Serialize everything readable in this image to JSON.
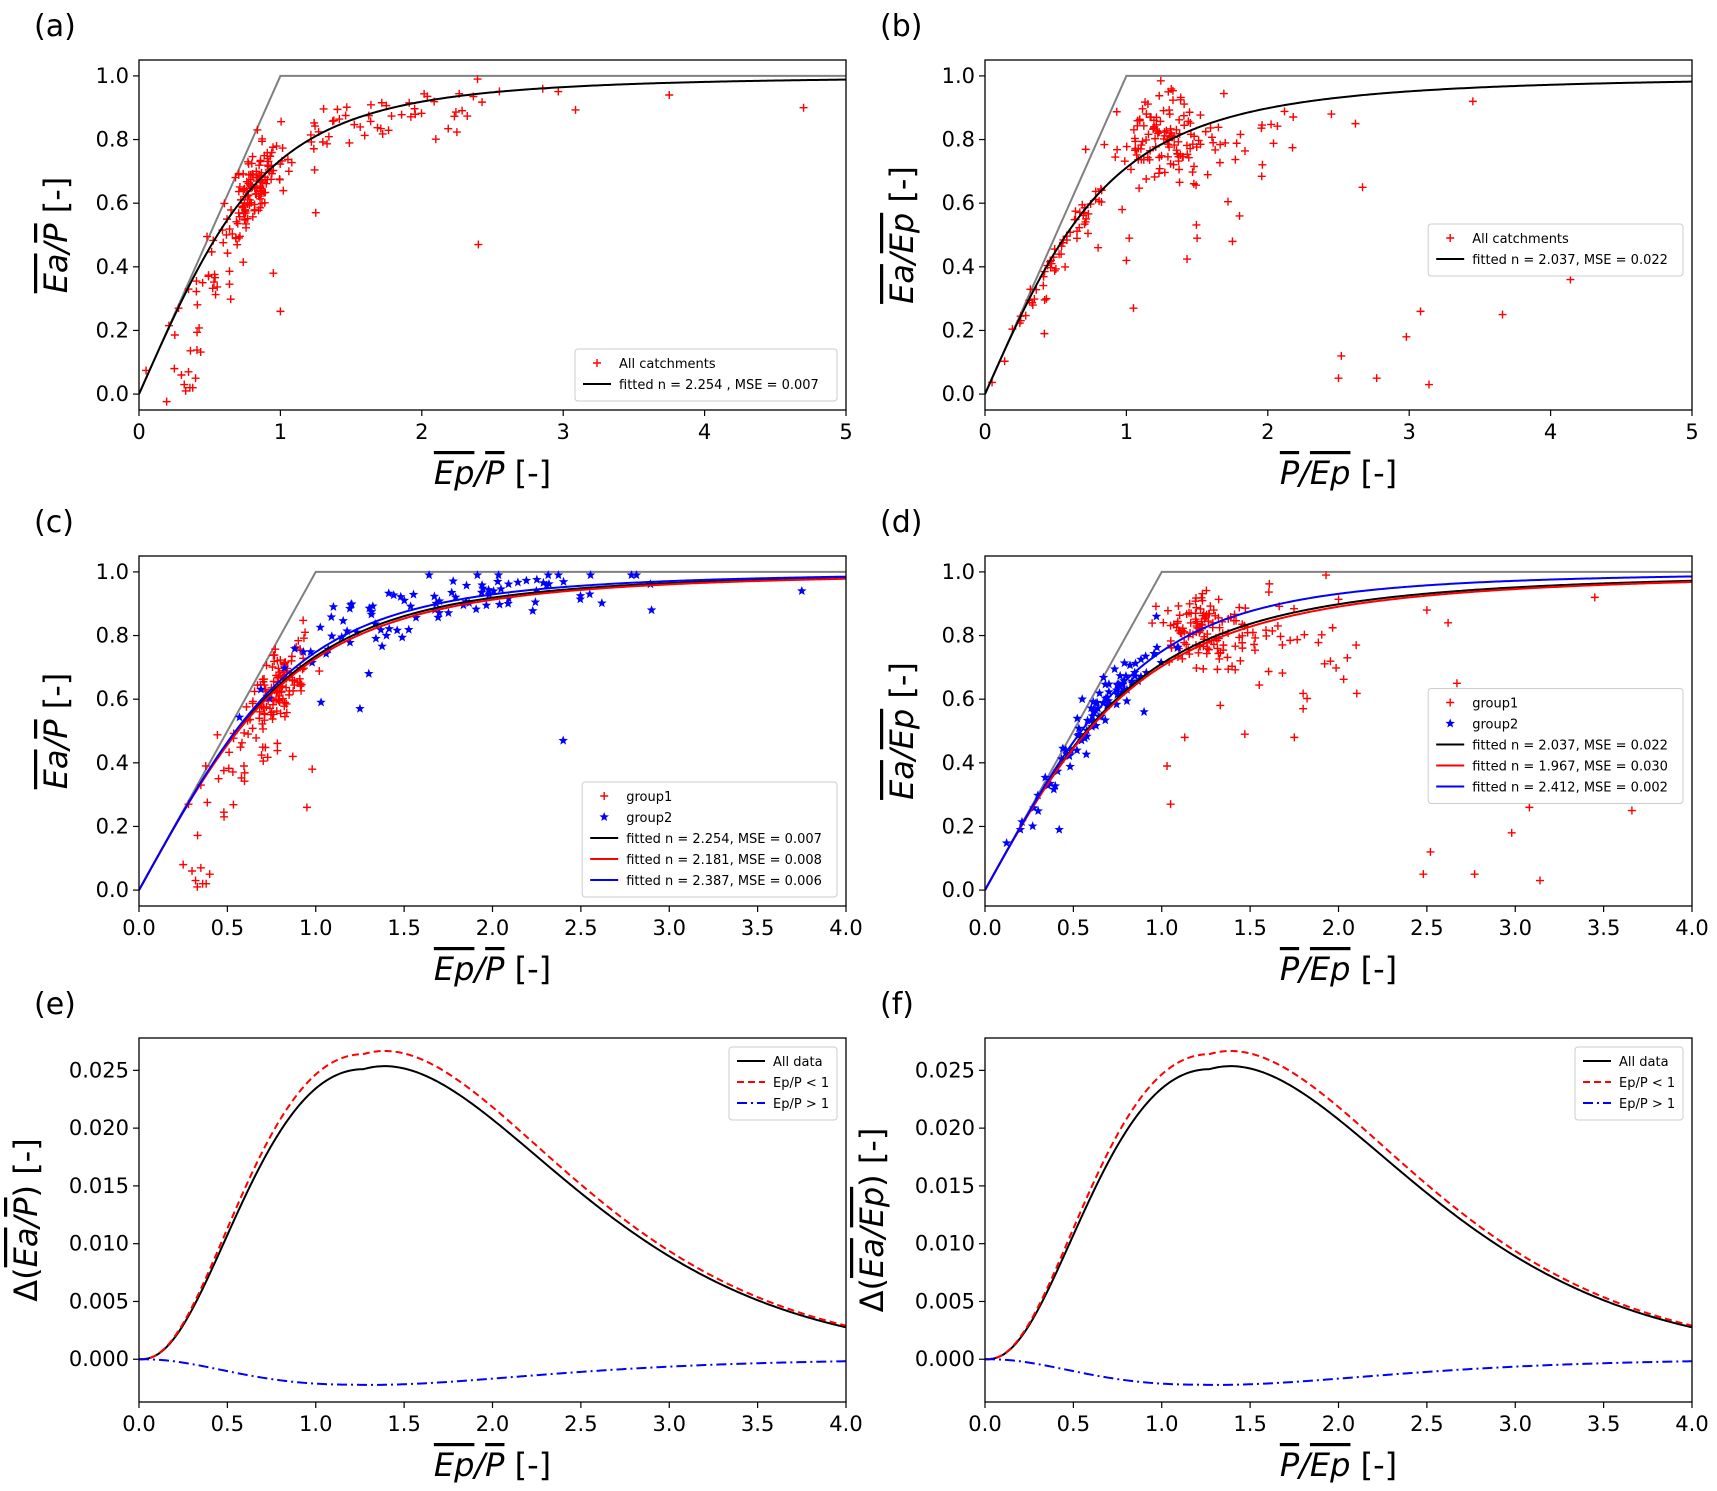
{
  "chart_data": [
    {
      "id": "a",
      "panel_label": "(a)",
      "type": "scatter",
      "xlabel": "Ep/P [-]",
      "x_overline": "Ep/P",
      "x_unit": " [-]",
      "ylabel": "Ea/P [-]",
      "y_overline": "Ea/P",
      "y_unit": " [-]",
      "xlim": [
        0,
        5
      ],
      "ylim": [
        -0.05,
        1.05
      ],
      "xticks": [
        0,
        1,
        2,
        3,
        4,
        5
      ],
      "xtick_labels": [
        "0",
        "1",
        "2",
        "3",
        "4",
        "5"
      ],
      "yticks": [
        0,
        0.2,
        0.4,
        0.6,
        0.8,
        1.0
      ],
      "ytick_labels": [
        "0.0",
        "0.2",
        "0.4",
        "0.6",
        "0.8",
        "1.0"
      ],
      "legend_position": "lower-right",
      "limit_line": {
        "color": "#808080",
        "x": [
          0,
          1,
          5
        ],
        "y": [
          0,
          1,
          1
        ]
      },
      "scatter": [
        {
          "name": "All catchments",
          "marker": "plus",
          "color": "#ff0000",
          "seed": 11,
          "clusters": [
            {
              "n": 110,
              "x_center": 0.82,
              "x_spread": 0.08,
              "y_center": 0.68,
              "y_spread": 0.06,
              "type": "curve",
              "n_exp": 2.254
            },
            {
              "n": 70,
              "x_center": 1.6,
              "x_spread": 0.6,
              "y_offset": -0.02,
              "y_spread": 0.05,
              "type": "curve",
              "n_exp": 2.254
            },
            {
              "n": 40,
              "x_center": 0.6,
              "x_spread": 0.15,
              "y_offset": -0.08,
              "y_spread": 0.08,
              "type": "curve",
              "n_exp": 2.254
            }
          ],
          "points": [
            [
              0.25,
              0.08
            ],
            [
              0.3,
              0.06
            ],
            [
              0.32,
              0.03
            ],
            [
              0.35,
              0.07
            ],
            [
              0.38,
              0.02
            ],
            [
              0.4,
              0.05
            ],
            [
              0.33,
              0.01
            ],
            [
              0.36,
              0.02
            ],
            [
              2.4,
              0.47
            ],
            [
              3.75,
              0.94
            ],
            [
              4.7,
              0.9
            ],
            [
              1.0,
              0.26
            ],
            [
              0.95,
              0.38
            ],
            [
              1.25,
              0.57
            ],
            [
              0.35,
              0.33
            ],
            [
              0.28,
              0.27
            ],
            [
              0.45,
              0.35
            ]
          ]
        }
      ],
      "curves": [
        {
          "name": "fitted n = 2.254 , MSE = 0.007",
          "color": "#000000",
          "dash": "",
          "x_range": [
            0,
            5
          ],
          "formula": "budyko",
          "n_exp": 2.254
        }
      ]
    },
    {
      "id": "b",
      "panel_label": "(b)",
      "type": "scatter",
      "xlabel": "P/Ep [-]",
      "x_overline": "P/Ep",
      "x_unit": " [-]",
      "ylabel": "Ea/Ep [-]",
      "y_overline": "Ea/Ep",
      "y_unit": " [-]",
      "xlim": [
        0,
        5
      ],
      "ylim": [
        -0.05,
        1.05
      ],
      "xticks": [
        0,
        1,
        2,
        3,
        4,
        5
      ],
      "xtick_labels": [
        "0",
        "1",
        "2",
        "3",
        "4",
        "5"
      ],
      "yticks": [
        0,
        0.2,
        0.4,
        0.6,
        0.8,
        1.0
      ],
      "ytick_labels": [
        "0.0",
        "0.2",
        "0.4",
        "0.6",
        "0.8",
        "1.0"
      ],
      "legend_position": "center-right",
      "limit_line": {
        "color": "#808080",
        "x": [
          0,
          1,
          5
        ],
        "y": [
          0,
          1,
          1
        ]
      },
      "scatter": [
        {
          "name": "All catchments",
          "marker": "plus",
          "color": "#ff0000",
          "seed": 23,
          "clusters": [
            {
              "n": 120,
              "x_center": 1.25,
              "x_spread": 0.15,
              "y_center": 0.8,
              "y_spread": 0.06,
              "type": "box"
            },
            {
              "n": 60,
              "x_center": 0.55,
              "x_spread": 0.2,
              "y_offset": -0.02,
              "y_spread": 0.03,
              "type": "curve",
              "n_exp": 2.037
            },
            {
              "n": 30,
              "x_center": 1.6,
              "x_spread": 0.35,
              "y_center": 0.78,
              "y_spread": 0.12,
              "type": "box"
            }
          ],
          "points": [
            [
              2.5,
              0.05
            ],
            [
              2.52,
              0.12
            ],
            [
              2.77,
              0.05
            ],
            [
              2.98,
              0.18
            ],
            [
              3.08,
              0.26
            ],
            [
              3.14,
              0.03
            ],
            [
              3.66,
              0.25
            ],
            [
              4.14,
              0.36
            ],
            [
              3.45,
              0.92
            ],
            [
              2.45,
              0.88
            ],
            [
              2.62,
              0.85
            ],
            [
              2.67,
              0.65
            ],
            [
              1.05,
              0.27
            ],
            [
              1.02,
              0.49
            ],
            [
              1.0,
              0.42
            ],
            [
              0.97,
              0.58
            ],
            [
              0.8,
              0.46
            ],
            [
              0.42,
              0.19
            ],
            [
              1.8,
              0.56
            ],
            [
              1.5,
              0.49
            ],
            [
              1.75,
              0.48
            ]
          ]
        }
      ],
      "curves": [
        {
          "name": "fitted n = 2.037, MSE = 0.022",
          "color": "#000000",
          "dash": "",
          "x_range": [
            0,
            5
          ],
          "formula": "budyko",
          "n_exp": 2.037
        }
      ]
    },
    {
      "id": "c",
      "panel_label": "(c)",
      "type": "scatter",
      "xlabel": "Ep/P [-]",
      "x_overline": "Ep/P",
      "x_unit": " [-]",
      "ylabel": "Ea/P [-]",
      "y_overline": "Ea/P",
      "y_unit": " [-]",
      "xlim": [
        0,
        4
      ],
      "ylim": [
        -0.05,
        1.05
      ],
      "xticks": [
        0,
        0.5,
        1,
        1.5,
        2,
        2.5,
        3,
        3.5,
        4
      ],
      "xtick_labels": [
        "0.0",
        "0.5",
        "1.0",
        "1.5",
        "2.0",
        "2.5",
        "3.0",
        "3.5",
        "4.0"
      ],
      "yticks": [
        0,
        0.2,
        0.4,
        0.6,
        0.8,
        1.0
      ],
      "ytick_labels": [
        "0.0",
        "0.2",
        "0.4",
        "0.6",
        "0.8",
        "1.0"
      ],
      "legend_position": "lower-right",
      "limit_line": {
        "color": "#808080",
        "x": [
          0,
          1,
          4
        ],
        "y": [
          0,
          1,
          1
        ]
      },
      "scatter": [
        {
          "name": "group1",
          "marker": "plus",
          "color": "#ff0000",
          "seed": 31,
          "clusters": [
            {
              "n": 110,
              "x_center": 0.8,
              "x_spread": 0.08,
              "y_center": 0.68,
              "y_spread": 0.06,
              "type": "curve",
              "n_exp": 2.181
            },
            {
              "n": 40,
              "x_center": 0.6,
              "x_spread": 0.12,
              "y_offset": -0.08,
              "y_spread": 0.08,
              "type": "curve",
              "n_exp": 2.181
            }
          ],
          "points": [
            [
              0.25,
              0.08
            ],
            [
              0.3,
              0.06
            ],
            [
              0.32,
              0.03
            ],
            [
              0.35,
              0.07
            ],
            [
              0.38,
              0.02
            ],
            [
              0.4,
              0.05
            ],
            [
              0.33,
              0.01
            ],
            [
              0.36,
              0.02
            ],
            [
              0.95,
              0.26
            ],
            [
              0.98,
              0.38
            ],
            [
              0.35,
              0.33
            ],
            [
              0.28,
              0.27
            ],
            [
              0.45,
              0.35
            ],
            [
              0.87,
              0.42
            ]
          ]
        },
        {
          "name": "group2",
          "marker": "star",
          "color": "#0000ff",
          "seed": 37,
          "clusters": [
            {
              "n": 90,
              "x_center": 1.75,
              "x_spread": 0.5,
              "y_offset": 0.01,
              "y_spread": 0.04,
              "type": "curve",
              "n_exp": 2.387
            }
          ],
          "points": [
            [
              2.4,
              0.47
            ],
            [
              3.75,
              0.94
            ],
            [
              2.9,
              0.88
            ],
            [
              1.25,
              0.57
            ],
            [
              1.03,
              0.59
            ],
            [
              1.1,
              0.89
            ],
            [
              1.4,
              0.8
            ],
            [
              2.55,
              0.93
            ],
            [
              1.3,
              0.68
            ]
          ]
        }
      ],
      "curves": [
        {
          "name": "fitted n = 2.254, MSE = 0.007",
          "color": "#000000",
          "dash": "",
          "x_range": [
            0,
            4
          ],
          "formula": "budyko",
          "n_exp": 2.254
        },
        {
          "name": "fitted n = 2.181, MSE = 0.008",
          "color": "#ff0000",
          "dash": "",
          "x_range": [
            0,
            4
          ],
          "formula": "budyko",
          "n_exp": 2.181
        },
        {
          "name": "fitted n = 2.387, MSE = 0.006",
          "color": "#0000ff",
          "dash": "",
          "x_range": [
            0,
            4
          ],
          "formula": "budyko",
          "n_exp": 2.387
        }
      ]
    },
    {
      "id": "d",
      "panel_label": "(d)",
      "type": "scatter",
      "xlabel": "P/Ep [-]",
      "x_overline": "P/Ep",
      "x_unit": " [-]",
      "ylabel": "Ea/Ep [-]",
      "y_overline": "Ea/Ep",
      "y_unit": " [-]",
      "xlim": [
        0,
        4
      ],
      "ylim": [
        -0.05,
        1.05
      ],
      "xticks": [
        0,
        0.5,
        1,
        1.5,
        2,
        2.5,
        3,
        3.5,
        4
      ],
      "xtick_labels": [
        "0.0",
        "0.5",
        "1.0",
        "1.5",
        "2.0",
        "2.5",
        "3.0",
        "3.5",
        "4.0"
      ],
      "yticks": [
        0,
        0.2,
        0.4,
        0.6,
        0.8,
        1.0
      ],
      "ytick_labels": [
        "0.0",
        "0.2",
        "0.4",
        "0.6",
        "0.8",
        "1.0"
      ],
      "legend_position": "center-right",
      "limit_line": {
        "color": "#808080",
        "x": [
          0,
          1,
          4
        ],
        "y": [
          0,
          1,
          1
        ]
      },
      "scatter": [
        {
          "name": "group1",
          "marker": "plus",
          "color": "#ff0000",
          "seed": 41,
          "clusters": [
            {
              "n": 120,
              "x_center": 1.25,
              "x_spread": 0.13,
              "y_center": 0.82,
              "y_spread": 0.05,
              "type": "box"
            },
            {
              "n": 40,
              "x_center": 1.65,
              "x_spread": 0.25,
              "y_center": 0.76,
              "y_spread": 0.1,
              "type": "box"
            }
          ],
          "points": [
            [
              2.48,
              0.05
            ],
            [
              2.52,
              0.12
            ],
            [
              2.77,
              0.05
            ],
            [
              2.98,
              0.18
            ],
            [
              3.08,
              0.26
            ],
            [
              3.14,
              0.03
            ],
            [
              3.66,
              0.25
            ],
            [
              3.45,
              0.92
            ],
            [
              2.5,
              0.88
            ],
            [
              2.62,
              0.84
            ],
            [
              2.67,
              0.65
            ],
            [
              1.05,
              0.27
            ],
            [
              1.03,
              0.39
            ],
            [
              1.13,
              0.48
            ],
            [
              1.47,
              0.49
            ],
            [
              1.75,
              0.48
            ],
            [
              1.8,
              0.57
            ],
            [
              2.05,
              0.73
            ],
            [
              2.1,
              0.77
            ]
          ]
        },
        {
          "name": "group2",
          "marker": "star",
          "color": "#0000ff",
          "seed": 43,
          "clusters": [
            {
              "n": 90,
              "x_center": 0.62,
              "x_spread": 0.22,
              "y_offset": 0.0,
              "y_spread": 0.035,
              "type": "curve",
              "n_exp": 2.412
            }
          ],
          "points": [
            [
              0.42,
              0.19
            ],
            [
              0.2,
              0.19
            ],
            [
              0.9,
              0.56
            ],
            [
              0.97,
              0.86
            ],
            [
              0.78,
              0.65
            ],
            [
              0.55,
              0.6
            ]
          ]
        }
      ],
      "curves": [
        {
          "name": "fitted n = 2.037, MSE = 0.022",
          "color": "#000000",
          "dash": "",
          "x_range": [
            0,
            4
          ],
          "formula": "budyko",
          "n_exp": 2.037
        },
        {
          "name": "fitted n = 1.967, MSE = 0.030",
          "color": "#ff0000",
          "dash": "",
          "x_range": [
            0,
            4
          ],
          "formula": "budyko",
          "n_exp": 1.967
        },
        {
          "name": "fitted n = 2.412, MSE = 0.002",
          "color": "#0000ff",
          "dash": "",
          "x_range": [
            0,
            4
          ],
          "formula": "budyko",
          "n_exp": 2.412
        }
      ]
    },
    {
      "id": "e",
      "panel_label": "(e)",
      "type": "line",
      "xlabel": "Ep/P [-]",
      "x_overline": "Ep/P",
      "x_unit": " [-]",
      "ylabel": "Δ(Ea/P) [-]",
      "y_overline": "Ea/P",
      "y_unit": " [-]",
      "y_prefix": "Δ(",
      "y_suffix": ")",
      "xlim": [
        0,
        4
      ],
      "ylim": [
        -0.0037,
        0.0278
      ],
      "xticks": [
        0,
        0.5,
        1,
        1.5,
        2,
        2.5,
        3,
        3.5,
        4
      ],
      "xtick_labels": [
        "0.0",
        "0.5",
        "1.0",
        "1.5",
        "2.0",
        "2.5",
        "3.0",
        "3.5",
        "4.0"
      ],
      "yticks": [
        0,
        0.005,
        0.01,
        0.015,
        0.02,
        0.025
      ],
      "ytick_labels": [
        "0.000",
        "0.005",
        "0.010",
        "0.015",
        "0.020",
        "0.025"
      ],
      "legend_position": "upper-right",
      "curves": [
        {
          "name": "All data",
          "color": "#000000",
          "dash": "",
          "x_range": [
            0,
            4
          ],
          "formula": "delta",
          "peak": 0.0251,
          "x_peak": 1.27
        },
        {
          "name": "Ep/P < 1",
          "color": "#ff0000",
          "dash": "7,4",
          "x_range": [
            0,
            4
          ],
          "formula": "delta",
          "peak": 0.0264,
          "x_peak": 1.27
        },
        {
          "name": "Ep/P > 1",
          "color": "#0000ff",
          "dash": "10,4,2,4",
          "x_range": [
            0,
            4
          ],
          "formula": "delta",
          "peak": -0.0022,
          "x_peak": 1.2
        }
      ]
    },
    {
      "id": "f",
      "panel_label": "(f)",
      "type": "line",
      "xlabel": "P/Ep [-]",
      "x_overline": "P/Ep",
      "x_unit": " [-]",
      "ylabel": "Δ(Ea/Ep) [-]",
      "y_overline": "Ea/Ep",
      "y_unit": " [-]",
      "y_prefix": "Δ(",
      "y_suffix": ")",
      "xlim": [
        0,
        4
      ],
      "ylim": [
        -0.0037,
        0.0278
      ],
      "xticks": [
        0,
        0.5,
        1,
        1.5,
        2,
        2.5,
        3,
        3.5,
        4
      ],
      "xtick_labels": [
        "0.0",
        "0.5",
        "1.0",
        "1.5",
        "2.0",
        "2.5",
        "3.0",
        "3.5",
        "4.0"
      ],
      "yticks": [
        0,
        0.005,
        0.01,
        0.015,
        0.02,
        0.025
      ],
      "ytick_labels": [
        "0.000",
        "0.005",
        "0.010",
        "0.015",
        "0.020",
        "0.025"
      ],
      "legend_position": "upper-right",
      "curves": [
        {
          "name": "All data",
          "color": "#000000",
          "dash": "",
          "x_range": [
            0,
            4
          ],
          "formula": "delta",
          "peak": 0.0251,
          "x_peak": 1.27
        },
        {
          "name": "Ep/P < 1",
          "color": "#ff0000",
          "dash": "7,4",
          "x_range": [
            0,
            4
          ],
          "formula": "delta",
          "peak": 0.0264,
          "x_peak": 1.27
        },
        {
          "name": "Ep/P > 1",
          "color": "#0000ff",
          "dash": "10,4,2,4",
          "x_range": [
            0,
            4
          ],
          "formula": "delta",
          "peak": -0.0022,
          "x_peak": 1.2
        }
      ]
    }
  ]
}
